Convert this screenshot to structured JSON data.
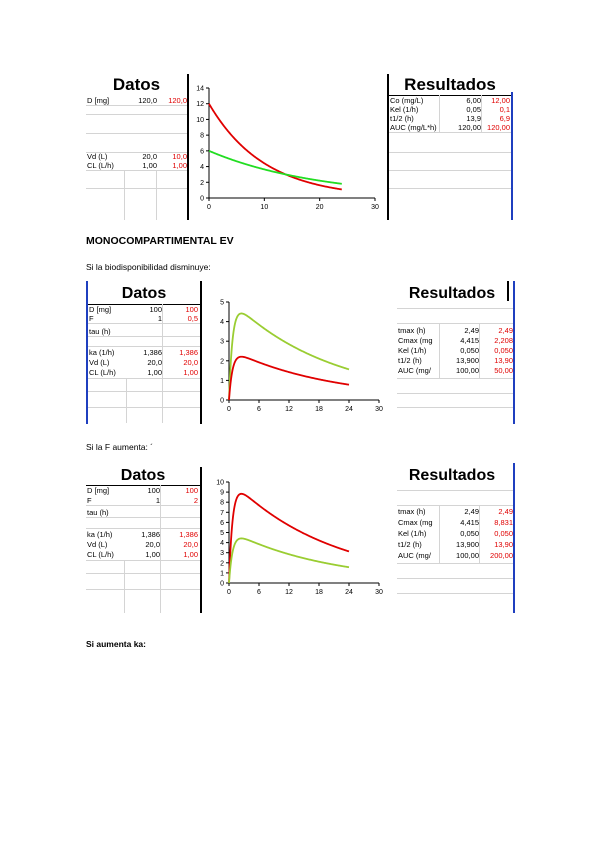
{
  "blocks": [
    {
      "datos": {
        "title": "Datos",
        "rows": [
          {
            "label": "D [mg]",
            "v1": "120,0",
            "v2": "120,0"
          },
          {
            "label": "Vd (L)",
            "v1": "20,0",
            "v2": "10,0"
          },
          {
            "label": "CL (L/h)",
            "v1": "1,00",
            "v2": "1,00"
          }
        ]
      },
      "resultados": {
        "title": "Resultados",
        "rows": [
          {
            "label": "Co (mg/L)",
            "v1": "6,00",
            "v2": "12,00"
          },
          {
            "label": "Kel (1/h)",
            "v1": "0,05",
            "v2": "0,1"
          },
          {
            "label": "t1/2 (h)",
            "v1": "13,9",
            "v2": "6,9"
          },
          {
            "label": "AUC (mg/L*h)",
            "v1": "120,00",
            "v2": "120,00"
          }
        ]
      },
      "chart_data": {
        "type": "line",
        "xlim": [
          0,
          30
        ],
        "ylim": [
          0,
          14
        ],
        "xticks": [
          "0",
          "10",
          "20",
          "30"
        ],
        "yticks": [
          "0",
          "2",
          "4",
          "6",
          "8",
          "10",
          "12",
          "14"
        ],
        "series": [
          {
            "color": "#e00000",
            "model": "iv",
            "c0": 12,
            "kel": 0.1,
            "tmax": 24
          },
          {
            "color": "#22dd22",
            "model": "iv",
            "c0": 6,
            "kel": 0.05,
            "tmax": 24
          }
        ]
      }
    },
    {
      "datos": {
        "title": "Datos",
        "rows": [
          {
            "label": "D [mg]",
            "v1": "100",
            "v2": "100"
          },
          {
            "label": "F",
            "v1": "1",
            "v2": "0,5"
          },
          {
            "label": "tau (h)",
            "v1": "",
            "v2": ""
          },
          {
            "label": "ka (1/h)",
            "v1": "1,386",
            "v2": "1,386"
          },
          {
            "label": "Vd (L)",
            "v1": "20,0",
            "v2": "20,0"
          },
          {
            "label": "CL (L/h)",
            "v1": "1,00",
            "v2": "1,00"
          }
        ]
      },
      "resultados": {
        "title": "Resultados",
        "rows": [
          {
            "label": "tmax (h)",
            "v1": "2,49",
            "v2": "2,49"
          },
          {
            "label": "Cmax (mg",
            "v1": "4,415",
            "v2": "2,208"
          },
          {
            "label": "Kel (1/h)",
            "v1": "0,050",
            "v2": "0,050"
          },
          {
            "label": "t1/2 (h)",
            "v1": "13,900",
            "v2": "13,90"
          },
          {
            "label": "AUC (mg/",
            "v1": "100,00",
            "v2": "50,00"
          }
        ]
      },
      "chart_data": {
        "type": "line",
        "xlim": [
          0,
          30
        ],
        "ylim": [
          0,
          5
        ],
        "xticks": [
          "0",
          "6",
          "12",
          "18",
          "24",
          "30"
        ],
        "yticks": [
          "0",
          "1",
          "2",
          "3",
          "4",
          "5"
        ],
        "series": [
          {
            "color": "#9acd32",
            "model": "ev",
            "dose": 100,
            "f": 1,
            "ka": 1.386,
            "kel": 0.05,
            "vd": 20,
            "tmax": 24
          },
          {
            "color": "#e00000",
            "model": "ev",
            "dose": 100,
            "f": 0.5,
            "ka": 1.386,
            "kel": 0.05,
            "vd": 20,
            "tmax": 24
          }
        ]
      }
    },
    {
      "datos": {
        "title": "Datos",
        "rows": [
          {
            "label": "D [mg]",
            "v1": "100",
            "v2": "100"
          },
          {
            "label": "F",
            "v1": "1",
            "v2": "2"
          },
          {
            "label": "tau (h)",
            "v1": "",
            "v2": ""
          },
          {
            "label": "ka (1/h)",
            "v1": "1,386",
            "v2": "1,386"
          },
          {
            "label": "Vd (L)",
            "v1": "20,0",
            "v2": "20,0"
          },
          {
            "label": "CL (L/h)",
            "v1": "1,00",
            "v2": "1,00"
          }
        ]
      },
      "resultados": {
        "title": "Resultados",
        "rows": [
          {
            "label": "tmax (h)",
            "v1": "2,49",
            "v2": "2,49"
          },
          {
            "label": "Cmax (mg",
            "v1": "4,415",
            "v2": "8,831"
          },
          {
            "label": "Kel (1/h)",
            "v1": "0,050",
            "v2": "0,050"
          },
          {
            "label": "t1/2 (h)",
            "v1": "13,900",
            "v2": "13,90"
          },
          {
            "label": "AUC (mg/",
            "v1": "100,00",
            "v2": "200,00"
          }
        ]
      },
      "chart_data": {
        "type": "line",
        "xlim": [
          0,
          30
        ],
        "ylim": [
          0,
          10
        ],
        "xticks": [
          "0",
          "6",
          "12",
          "18",
          "24",
          "30"
        ],
        "yticks": [
          "0",
          "1",
          "2",
          "3",
          "4",
          "5",
          "6",
          "7",
          "8",
          "9",
          "10"
        ],
        "series": [
          {
            "color": "#e00000",
            "model": "ev",
            "dose": 100,
            "f": 2,
            "ka": 1.386,
            "kel": 0.05,
            "vd": 20,
            "tmax": 24
          },
          {
            "color": "#9acd32",
            "model": "ev",
            "dose": 100,
            "f": 1,
            "ka": 1.386,
            "kel": 0.05,
            "vd": 20,
            "tmax": 24
          }
        ]
      }
    }
  ],
  "text": {
    "heading_ev": "MONOCOMPARTIMENTAL EV",
    "para_f_down": "Si la biodisponibilidad disminuye:",
    "para_f_up": "Si la F aumenta: ´",
    "para_ka_up": "Si aumenta ka:"
  }
}
